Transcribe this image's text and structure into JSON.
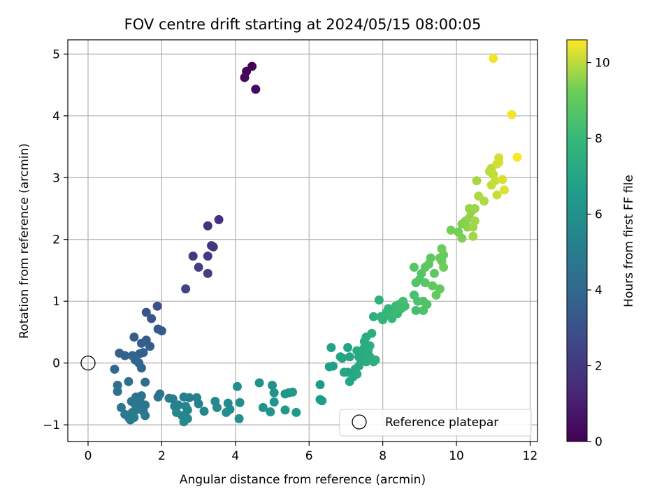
{
  "chart_data": {
    "type": "scatter",
    "title": "FOV centre drift starting at 2024/05/15 08:00:05",
    "xlabel": "Angular distance from reference (arcmin)",
    "ylabel": "Rotation from reference (arcmin)",
    "xlim": [
      -0.55,
      12.2
    ],
    "ylim": [
      -1.27,
      5.23
    ],
    "xticks": [
      0,
      2,
      4,
      6,
      8,
      10,
      12
    ],
    "yticks": [
      -1,
      0,
      1,
      2,
      3,
      4,
      5
    ],
    "grid": true,
    "legend": {
      "position": "lower-right",
      "entries": [
        "Reference platepar"
      ]
    },
    "reference_point": {
      "x": 0,
      "y": 0
    },
    "colorbar": {
      "label": "Hours from first FF file",
      "colormap": "viridis",
      "range": [
        0,
        10.6
      ],
      "ticks": [
        0,
        2,
        4,
        6,
        8,
        10
      ]
    },
    "points": [
      {
        "x": 4.45,
        "y": 4.8,
        "c": 0.05
      },
      {
        "x": 4.3,
        "y": 4.72,
        "c": 0.15
      },
      {
        "x": 4.25,
        "y": 4.62,
        "c": 0.25
      },
      {
        "x": 4.55,
        "y": 4.43,
        "c": 0.35
      },
      {
        "x": 3.55,
        "y": 2.32,
        "c": 1.6
      },
      {
        "x": 3.25,
        "y": 2.22,
        "c": 1.7
      },
      {
        "x": 3.35,
        "y": 1.9,
        "c": 1.8
      },
      {
        "x": 3.4,
        "y": 1.88,
        "c": 1.9
      },
      {
        "x": 2.85,
        "y": 1.73,
        "c": 2.0
      },
      {
        "x": 3.25,
        "y": 1.73,
        "c": 2.1
      },
      {
        "x": 3.0,
        "y": 1.55,
        "c": 2.2
      },
      {
        "x": 3.25,
        "y": 1.45,
        "c": 2.3
      },
      {
        "x": 2.65,
        "y": 1.2,
        "c": 2.5
      },
      {
        "x": 1.88,
        "y": 0.92,
        "c": 3.0
      },
      {
        "x": 1.58,
        "y": 0.82,
        "c": 3.1
      },
      {
        "x": 1.72,
        "y": 0.72,
        "c": 3.2
      },
      {
        "x": 1.9,
        "y": 0.55,
        "c": 3.3
      },
      {
        "x": 2.0,
        "y": 0.52,
        "c": 3.35
      },
      {
        "x": 1.58,
        "y": 0.37,
        "c": 3.4
      },
      {
        "x": 1.25,
        "y": 0.42,
        "c": 3.45
      },
      {
        "x": 1.45,
        "y": 0.32,
        "c": 3.5
      },
      {
        "x": 1.68,
        "y": 0.27,
        "c": 3.55
      },
      {
        "x": 1.4,
        "y": 0.15,
        "c": 3.6
      },
      {
        "x": 1.5,
        "y": 0.17,
        "c": 3.65
      },
      {
        "x": 0.85,
        "y": 0.16,
        "c": 3.7
      },
      {
        "x": 1.0,
        "y": 0.12,
        "c": 3.75
      },
      {
        "x": 1.2,
        "y": 0.12,
        "c": 3.8
      },
      {
        "x": 1.28,
        "y": 0.05,
        "c": 3.85
      },
      {
        "x": 1.38,
        "y": 0.0,
        "c": 3.9
      },
      {
        "x": 1.45,
        "y": -0.08,
        "c": 3.95
      },
      {
        "x": 0.72,
        "y": -0.1,
        "c": 4.0
      },
      {
        "x": 1.1,
        "y": -0.3,
        "c": 4.3
      },
      {
        "x": 1.55,
        "y": -0.31,
        "c": 4.35
      },
      {
        "x": 0.8,
        "y": -0.36,
        "c": 4.4
      },
      {
        "x": 0.8,
        "y": -0.46,
        "c": 4.45
      },
      {
        "x": 1.95,
        "y": -0.5,
        "c": 4.5
      },
      {
        "x": 1.9,
        "y": -0.55,
        "c": 4.55
      },
      {
        "x": 1.3,
        "y": -0.55,
        "c": 4.6
      },
      {
        "x": 1.45,
        "y": -0.53,
        "c": 4.6
      },
      {
        "x": 1.18,
        "y": -0.62,
        "c": 4.65
      },
      {
        "x": 1.4,
        "y": -0.62,
        "c": 4.7
      },
      {
        "x": 1.55,
        "y": -0.68,
        "c": 4.7
      },
      {
        "x": 1.3,
        "y": -0.7,
        "c": 4.75
      },
      {
        "x": 0.9,
        "y": -0.72,
        "c": 4.75
      },
      {
        "x": 1.35,
        "y": -0.75,
        "c": 4.8
      },
      {
        "x": 1.5,
        "y": -0.78,
        "c": 4.8
      },
      {
        "x": 1.2,
        "y": -0.8,
        "c": 4.85
      },
      {
        "x": 1.0,
        "y": -0.83,
        "c": 4.85
      },
      {
        "x": 1.55,
        "y": -0.85,
        "c": 4.9
      },
      {
        "x": 1.1,
        "y": -0.88,
        "c": 4.9
      },
      {
        "x": 1.25,
        "y": -0.88,
        "c": 4.95
      },
      {
        "x": 1.15,
        "y": -0.92,
        "c": 4.95
      },
      {
        "x": 2.2,
        "y": -0.57,
        "c": 5.0
      },
      {
        "x": 2.3,
        "y": -0.58,
        "c": 5.05
      },
      {
        "x": 2.6,
        "y": -0.55,
        "c": 5.1
      },
      {
        "x": 2.75,
        "y": -0.56,
        "c": 5.15
      },
      {
        "x": 2.95,
        "y": -0.56,
        "c": 5.2
      },
      {
        "x": 3.0,
        "y": -0.66,
        "c": 5.25
      },
      {
        "x": 2.35,
        "y": -0.7,
        "c": 5.3
      },
      {
        "x": 2.45,
        "y": -0.68,
        "c": 5.35
      },
      {
        "x": 2.65,
        "y": -0.7,
        "c": 5.4
      },
      {
        "x": 2.7,
        "y": -0.76,
        "c": 5.45
      },
      {
        "x": 2.4,
        "y": -0.8,
        "c": 5.5
      },
      {
        "x": 2.55,
        "y": -0.85,
        "c": 5.5
      },
      {
        "x": 3.15,
        "y": -0.78,
        "c": 5.55
      },
      {
        "x": 2.7,
        "y": -0.9,
        "c": 5.6
      },
      {
        "x": 2.6,
        "y": -0.95,
        "c": 5.6
      },
      {
        "x": 3.45,
        "y": -0.62,
        "c": 5.65
      },
      {
        "x": 3.5,
        "y": -0.72,
        "c": 5.7
      },
      {
        "x": 3.8,
        "y": -0.65,
        "c": 5.75
      },
      {
        "x": 3.85,
        "y": -0.75,
        "c": 5.8
      },
      {
        "x": 3.75,
        "y": -0.8,
        "c": 5.85
      },
      {
        "x": 4.05,
        "y": -0.38,
        "c": 5.9
      },
      {
        "x": 4.12,
        "y": -0.64,
        "c": 5.9
      },
      {
        "x": 4.1,
        "y": -0.9,
        "c": 5.95
      },
      {
        "x": 4.65,
        "y": -0.32,
        "c": 6.0
      },
      {
        "x": 5.0,
        "y": -0.36,
        "c": 6.05
      },
      {
        "x": 5.05,
        "y": -0.48,
        "c": 6.1
      },
      {
        "x": 4.75,
        "y": -0.72,
        "c": 6.15
      },
      {
        "x": 5.05,
        "y": -0.63,
        "c": 6.2
      },
      {
        "x": 4.95,
        "y": -0.79,
        "c": 6.25
      },
      {
        "x": 5.35,
        "y": -0.5,
        "c": 6.3
      },
      {
        "x": 5.45,
        "y": -0.48,
        "c": 6.3
      },
      {
        "x": 5.55,
        "y": -0.47,
        "c": 6.35
      },
      {
        "x": 5.35,
        "y": -0.76,
        "c": 6.4
      },
      {
        "x": 5.65,
        "y": -0.8,
        "c": 6.45
      },
      {
        "x": 6.3,
        "y": -0.35,
        "c": 6.5
      },
      {
        "x": 6.3,
        "y": -0.59,
        "c": 6.55
      },
      {
        "x": 6.35,
        "y": -0.61,
        "c": 6.6
      },
      {
        "x": 6.55,
        "y": -0.06,
        "c": 6.7
      },
      {
        "x": 6.65,
        "y": -0.05,
        "c": 6.75
      },
      {
        "x": 6.9,
        "y": 0.08,
        "c": 6.8
      },
      {
        "x": 6.6,
        "y": 0.25,
        "c": 6.85
      },
      {
        "x": 6.85,
        "y": 0.1,
        "c": 6.9
      },
      {
        "x": 7.05,
        "y": 0.25,
        "c": 6.95
      },
      {
        "x": 7.1,
        "y": 0.1,
        "c": 7.0
      },
      {
        "x": 7.05,
        "y": -0.15,
        "c": 7.0
      },
      {
        "x": 6.95,
        "y": -0.15,
        "c": 7.05
      },
      {
        "x": 7.1,
        "y": -0.3,
        "c": 7.05
      },
      {
        "x": 7.2,
        "y": -0.22,
        "c": 7.1
      },
      {
        "x": 7.25,
        "y": -0.1,
        "c": 7.1
      },
      {
        "x": 7.3,
        "y": 0.2,
        "c": 7.15
      },
      {
        "x": 7.35,
        "y": 0.1,
        "c": 7.15
      },
      {
        "x": 7.4,
        "y": 0.05,
        "c": 7.2
      },
      {
        "x": 7.35,
        "y": -0.05,
        "c": 7.2
      },
      {
        "x": 7.3,
        "y": -0.18,
        "c": 7.25
      },
      {
        "x": 7.45,
        "y": 0.15,
        "c": 7.25
      },
      {
        "x": 7.5,
        "y": 0.35,
        "c": 7.3
      },
      {
        "x": 7.55,
        "y": 0.42,
        "c": 7.3
      },
      {
        "x": 7.5,
        "y": 0.25,
        "c": 7.35
      },
      {
        "x": 7.6,
        "y": 0.2,
        "c": 7.35
      },
      {
        "x": 7.65,
        "y": 0.1,
        "c": 7.4
      },
      {
        "x": 7.55,
        "y": 0.02,
        "c": 7.4
      },
      {
        "x": 7.7,
        "y": 0.48,
        "c": 7.45
      },
      {
        "x": 7.65,
        "y": 0.28,
        "c": 7.45
      },
      {
        "x": 7.75,
        "y": 0.02,
        "c": 7.5
      },
      {
        "x": 7.8,
        "y": 0.05,
        "c": 7.5
      },
      {
        "x": 7.75,
        "y": 0.75,
        "c": 7.55
      },
      {
        "x": 7.9,
        "y": 1.02,
        "c": 7.6
      },
      {
        "x": 7.95,
        "y": 0.75,
        "c": 7.7
      },
      {
        "x": 8.0,
        "y": 0.7,
        "c": 7.75
      },
      {
        "x": 8.1,
        "y": 0.82,
        "c": 7.8
      },
      {
        "x": 8.15,
        "y": 0.88,
        "c": 7.85
      },
      {
        "x": 8.2,
        "y": 0.77,
        "c": 7.9
      },
      {
        "x": 8.25,
        "y": 0.72,
        "c": 7.95
      },
      {
        "x": 8.35,
        "y": 0.92,
        "c": 8.0
      },
      {
        "x": 8.3,
        "y": 0.8,
        "c": 8.05
      },
      {
        "x": 8.4,
        "y": 0.8,
        "c": 8.1
      },
      {
        "x": 8.45,
        "y": 0.95,
        "c": 8.15
      },
      {
        "x": 8.5,
        "y": 0.88,
        "c": 8.2
      },
      {
        "x": 8.6,
        "y": 0.92,
        "c": 8.25
      },
      {
        "x": 8.55,
        "y": 1.0,
        "c": 8.3
      },
      {
        "x": 8.9,
        "y": 0.85,
        "c": 8.35
      },
      {
        "x": 8.85,
        "y": 1.1,
        "c": 8.4
      },
      {
        "x": 8.95,
        "y": 1.0,
        "c": 8.45
      },
      {
        "x": 9.1,
        "y": 0.85,
        "c": 8.5
      },
      {
        "x": 9.1,
        "y": 1.0,
        "c": 8.55
      },
      {
        "x": 9.2,
        "y": 0.95,
        "c": 8.6
      },
      {
        "x": 8.9,
        "y": 1.3,
        "c": 8.65
      },
      {
        "x": 9.0,
        "y": 1.35,
        "c": 8.7
      },
      {
        "x": 9.05,
        "y": 1.45,
        "c": 8.7
      },
      {
        "x": 8.85,
        "y": 1.55,
        "c": 8.75
      },
      {
        "x": 9.15,
        "y": 1.3,
        "c": 8.8
      },
      {
        "x": 9.15,
        "y": 1.55,
        "c": 8.8
      },
      {
        "x": 9.25,
        "y": 1.6,
        "c": 8.85
      },
      {
        "x": 9.3,
        "y": 1.7,
        "c": 8.9
      },
      {
        "x": 9.4,
        "y": 1.45,
        "c": 8.9
      },
      {
        "x": 9.35,
        "y": 1.25,
        "c": 8.95
      },
      {
        "x": 9.45,
        "y": 1.1,
        "c": 9.0
      },
      {
        "x": 9.55,
        "y": 1.2,
        "c": 9.0
      },
      {
        "x": 9.55,
        "y": 1.7,
        "c": 9.05
      },
      {
        "x": 9.6,
        "y": 1.65,
        "c": 9.1
      },
      {
        "x": 9.65,
        "y": 1.75,
        "c": 9.1
      },
      {
        "x": 9.6,
        "y": 1.85,
        "c": 9.15
      },
      {
        "x": 9.65,
        "y": 1.55,
        "c": 9.2
      },
      {
        "x": 9.85,
        "y": 2.15,
        "c": 9.3
      },
      {
        "x": 10.05,
        "y": 2.12,
        "c": 9.35
      },
      {
        "x": 10.15,
        "y": 2.02,
        "c": 9.4
      },
      {
        "x": 10.15,
        "y": 2.25,
        "c": 9.45
      },
      {
        "x": 10.25,
        "y": 2.3,
        "c": 9.5
      },
      {
        "x": 10.3,
        "y": 2.2,
        "c": 9.55
      },
      {
        "x": 10.35,
        "y": 2.35,
        "c": 9.6
      },
      {
        "x": 10.4,
        "y": 2.45,
        "c": 9.6
      },
      {
        "x": 10.35,
        "y": 2.5,
        "c": 9.65
      },
      {
        "x": 10.5,
        "y": 2.5,
        "c": 9.7
      },
      {
        "x": 10.45,
        "y": 2.2,
        "c": 9.7
      },
      {
        "x": 10.5,
        "y": 2.3,
        "c": 9.75
      },
      {
        "x": 10.45,
        "y": 2.05,
        "c": 9.75
      },
      {
        "x": 10.55,
        "y": 2.95,
        "c": 9.8
      },
      {
        "x": 10.6,
        "y": 2.7,
        "c": 9.85
      },
      {
        "x": 10.75,
        "y": 2.62,
        "c": 9.9
      },
      {
        "x": 10.9,
        "y": 3.1,
        "c": 9.95
      },
      {
        "x": 10.95,
        "y": 3.15,
        "c": 10.0
      },
      {
        "x": 11.0,
        "y": 3.05,
        "c": 10.05
      },
      {
        "x": 10.95,
        "y": 2.88,
        "c": 10.05
      },
      {
        "x": 11.05,
        "y": 2.95,
        "c": 10.1
      },
      {
        "x": 11.1,
        "y": 2.72,
        "c": 10.1
      },
      {
        "x": 11.1,
        "y": 3.22,
        "c": 10.15
      },
      {
        "x": 11.15,
        "y": 3.32,
        "c": 10.2
      },
      {
        "x": 11.15,
        "y": 3.25,
        "c": 10.2
      },
      {
        "x": 11.25,
        "y": 2.97,
        "c": 10.25
      },
      {
        "x": 11.3,
        "y": 2.8,
        "c": 10.3
      },
      {
        "x": 11.0,
        "y": 4.93,
        "c": 10.5
      },
      {
        "x": 11.5,
        "y": 4.02,
        "c": 10.5
      },
      {
        "x": 11.65,
        "y": 3.33,
        "c": 10.55
      }
    ]
  }
}
